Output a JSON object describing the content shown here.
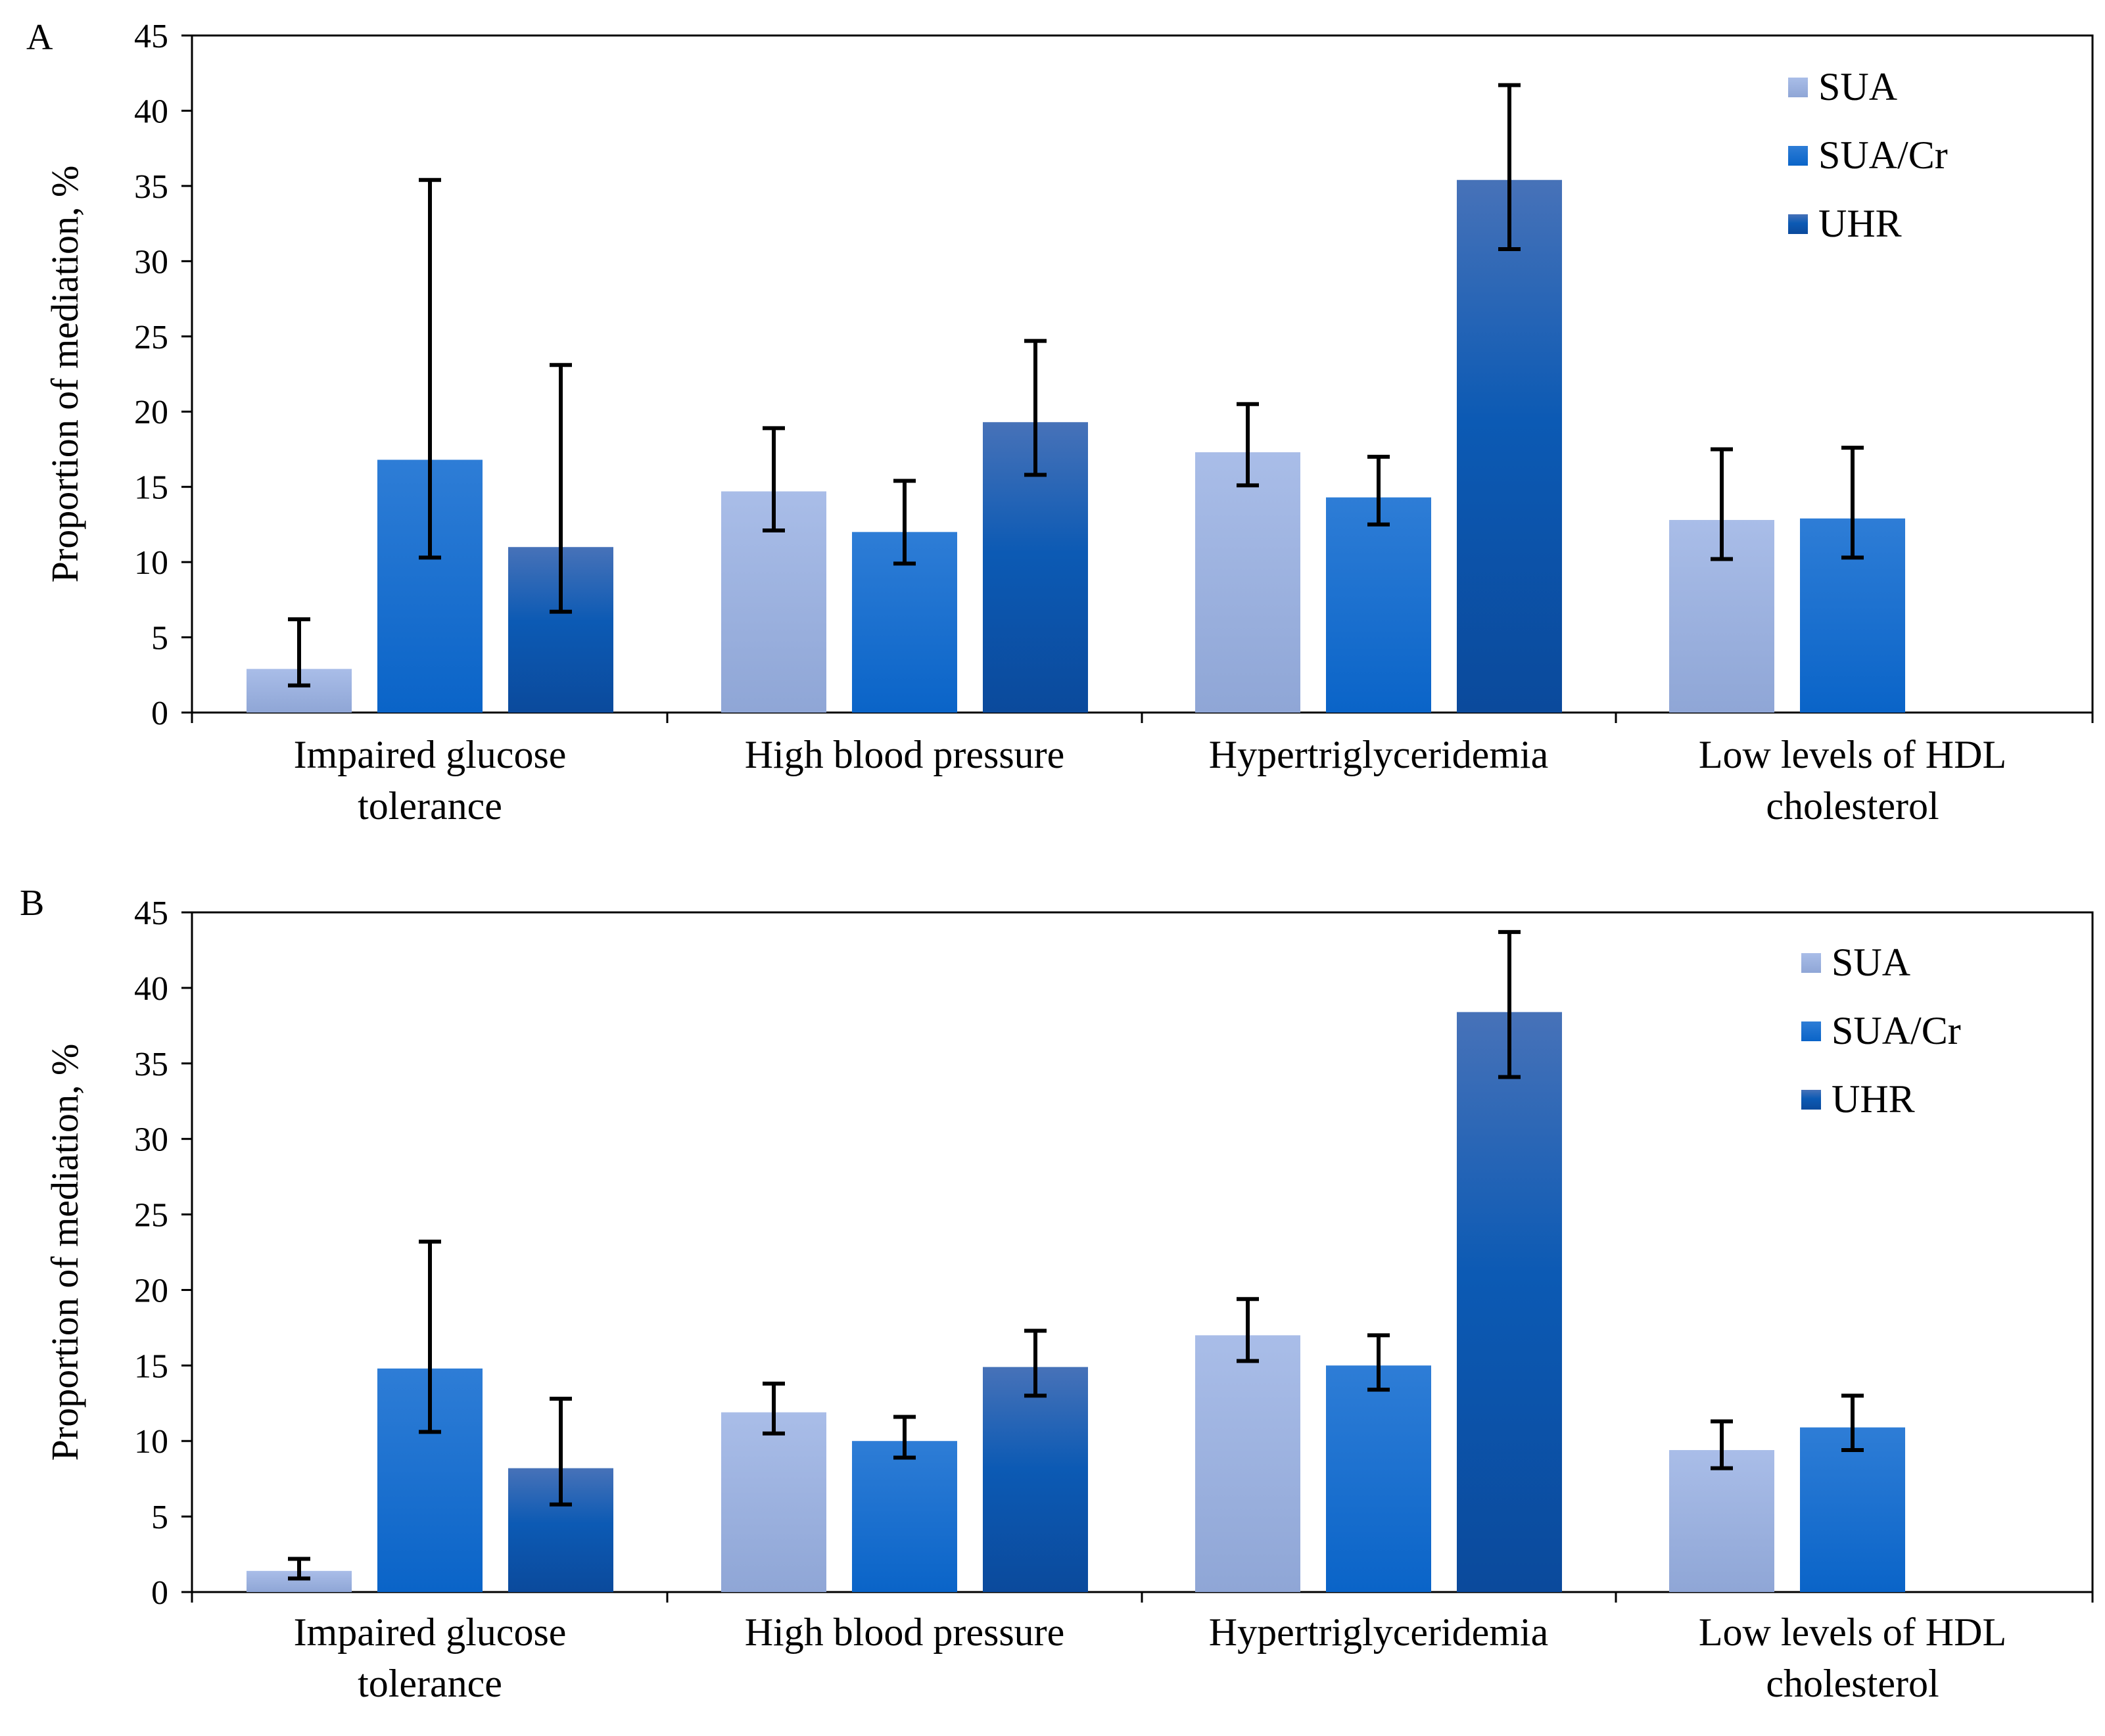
{
  "chart_data": [
    {
      "type": "bar",
      "panel_label": "A",
      "ylabel": "Proportion of mediation, %",
      "xlabel": "",
      "ylim": [
        0,
        45
      ],
      "yticks": [
        0,
        5,
        10,
        15,
        20,
        25,
        30,
        35,
        40,
        45
      ],
      "grid": false,
      "legend": "top-right",
      "categories": [
        [
          "Impaired glucose",
          "tolerance"
        ],
        [
          "High blood pressure"
        ],
        [
          "Hypertriglyceridemia"
        ],
        [
          "Low levels of HDL",
          "cholesterol"
        ]
      ],
      "series": [
        {
          "name": "SUA",
          "values": [
            2.9,
            14.7,
            17.3,
            12.8
          ],
          "err_low": [
            1.8,
            12.1,
            15.1,
            10.2
          ],
          "err_high": [
            6.2,
            18.9,
            20.5,
            17.5
          ]
        },
        {
          "name": "SUA/Cr",
          "values": [
            16.8,
            12.0,
            14.3,
            12.9
          ],
          "err_low": [
            10.3,
            9.9,
            12.5,
            10.3
          ],
          "err_high": [
            35.4,
            15.4,
            17.0,
            17.6
          ]
        },
        {
          "name": "UHR",
          "values": [
            11.0,
            19.3,
            35.4,
            null
          ],
          "err_low": [
            6.7,
            15.8,
            30.8,
            null
          ],
          "err_high": [
            23.1,
            24.7,
            41.7,
            null
          ]
        }
      ]
    },
    {
      "type": "bar",
      "panel_label": "B",
      "ylabel": "Proportion of mediation, %",
      "xlabel": "",
      "ylim": [
        0,
        45
      ],
      "yticks": [
        0,
        5,
        10,
        15,
        20,
        25,
        30,
        35,
        40,
        45
      ],
      "grid": false,
      "legend": "top-right",
      "categories": [
        [
          "Impaired glucose",
          "tolerance"
        ],
        [
          "High blood pressure"
        ],
        [
          "Hypertriglyceridemia"
        ],
        [
          "Low levels of HDL",
          "cholesterol"
        ]
      ],
      "series": [
        {
          "name": "SUA",
          "values": [
            1.4,
            11.9,
            17.0,
            9.4
          ],
          "err_low": [
            0.9,
            10.5,
            15.3,
            8.2
          ],
          "err_high": [
            2.2,
            13.8,
            19.4,
            11.3
          ]
        },
        {
          "name": "SUA/Cr",
          "values": [
            14.8,
            10.0,
            15.0,
            10.9
          ],
          "err_low": [
            10.6,
            8.9,
            13.4,
            9.4
          ],
          "err_high": [
            23.2,
            11.6,
            17.0,
            13.0
          ]
        },
        {
          "name": "UHR",
          "values": [
            8.2,
            14.9,
            38.4,
            null
          ],
          "err_low": [
            5.8,
            13.0,
            34.1,
            null
          ],
          "err_high": [
            12.8,
            17.3,
            43.7,
            null
          ]
        }
      ]
    }
  ],
  "colors": {
    "SUA_top": "#a9bde8",
    "SUA_bottom": "#8fa6d6",
    "SUACr_top": "#2e7dd6",
    "SUACr_bottom": "#0a64c8",
    "UHR_top": "#3f6fb8",
    "UHR_bottom": "#0b4a9c",
    "axis": "#000000",
    "error_bar": "#000000"
  }
}
